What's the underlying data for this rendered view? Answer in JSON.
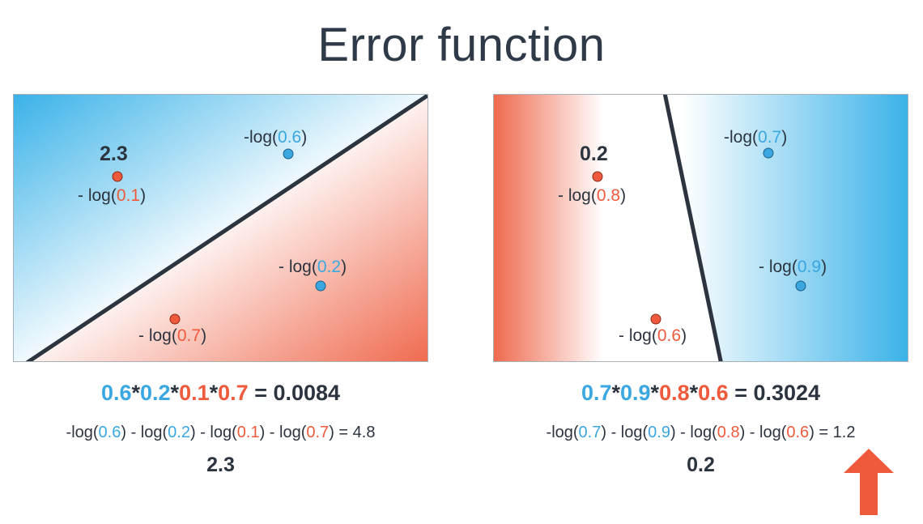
{
  "title": "Error function",
  "colors": {
    "blue": "#3aa7e0",
    "red": "#ef5a3c",
    "dark": "#2c3440"
  },
  "left_panel": {
    "score": "2.3",
    "points": [
      {
        "color": "red",
        "prefix": "- log(",
        "value": "0.1",
        "suffix": ")"
      },
      {
        "color": "blue",
        "prefix": "-log(",
        "value": "0.6",
        "suffix": ")"
      },
      {
        "color": "blue",
        "prefix": "- log(",
        "value": "0.2",
        "suffix": ")"
      },
      {
        "color": "red",
        "prefix": "- log(",
        "value": "0.7",
        "suffix": ")"
      }
    ],
    "product": {
      "a": "0.6",
      "b": "0.2",
      "c": "0.1",
      "d": "0.7",
      "result": "= 0.0084"
    },
    "log_sum": {
      "p1": "-log(",
      "v1": "0.6",
      "p2": ") - log(",
      "v2": "0.2",
      "p3": ") - log(",
      "v3": "0.1",
      "p4": ") - log(",
      "v4": "0.7",
      "p5": ") = 4.8"
    },
    "total": "2.3"
  },
  "right_panel": {
    "score": "0.2",
    "points": [
      {
        "color": "red",
        "prefix": "- log(",
        "value": "0.8",
        "suffix": ")"
      },
      {
        "color": "blue",
        "prefix": "-log(",
        "value": "0.7",
        "suffix": ")"
      },
      {
        "color": "blue",
        "prefix": "- log(",
        "value": "0.9",
        "suffix": ")"
      },
      {
        "color": "red",
        "prefix": "- log(",
        "value": "0.6",
        "suffix": ")"
      }
    ],
    "product": {
      "a": "0.7",
      "b": "0.9",
      "c": "0.8",
      "d": "0.6",
      "result": "= 0.3024"
    },
    "log_sum": {
      "p1": "-log(",
      "v1": "0.7",
      "p2": ") - log(",
      "v2": "0.9",
      "p3": ") - log(",
      "v3": "0.8",
      "p4": ") - log(",
      "v4": "0.6",
      "p5": ") = 1.2"
    },
    "total": "0.2"
  },
  "arrow": {
    "icon": "up-arrow-icon",
    "color": "#ef5a3c"
  }
}
